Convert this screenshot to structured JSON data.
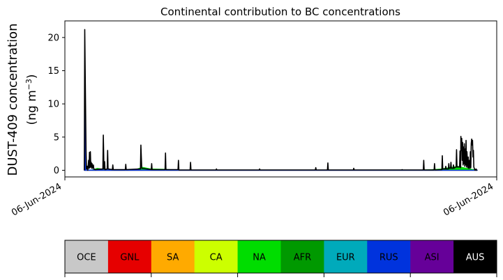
{
  "chart_data": {
    "type": "area",
    "title": "Continental contribution to BC concentrations",
    "ylabel_line1": "DUST-409 concentration",
    "ylabel_line2": "(ng m",
    "ylabel_sup": "−3",
    "ylabel_close": ")",
    "xlabel": "",
    "ylim": [
      -1,
      22.5
    ],
    "yticks": [
      0,
      5,
      10,
      15,
      20
    ],
    "x_tick_labels": [
      "06-Jun-2024",
      "06-Jun-2024"
    ],
    "x_range": [
      0,
      1
    ],
    "data_span": [
      0.045,
      0.955
    ],
    "grid": false,
    "total_series": {
      "name": "",
      "color": "#000000",
      "points": [
        [
          0.045,
          0
        ],
        [
          0.046,
          21.2
        ],
        [
          0.0475,
          12
        ],
        [
          0.049,
          3
        ],
        [
          0.05,
          0.2
        ],
        [
          0.052,
          0.6
        ],
        [
          0.053,
          0
        ],
        [
          0.055,
          1.5
        ],
        [
          0.056,
          0.3
        ],
        [
          0.057,
          2.7
        ],
        [
          0.058,
          0.4
        ],
        [
          0.059,
          2.8
        ],
        [
          0.06,
          0.5
        ],
        [
          0.061,
          1.2
        ],
        [
          0.062,
          0.3
        ],
        [
          0.063,
          1.0
        ],
        [
          0.064,
          0.3
        ],
        [
          0.066,
          0.8
        ],
        [
          0.067,
          0.2
        ],
        [
          0.07,
          0.1
        ],
        [
          0.088,
          0.2
        ],
        [
          0.089,
          5.3
        ],
        [
          0.0905,
          0.2
        ],
        [
          0.092,
          1.3
        ],
        [
          0.093,
          0.1
        ],
        [
          0.098,
          0.2
        ],
        [
          0.099,
          3.0
        ],
        [
          0.1,
          0.2
        ],
        [
          0.11,
          0.1
        ],
        [
          0.111,
          0.8
        ],
        [
          0.112,
          0.1
        ],
        [
          0.14,
          0.1
        ],
        [
          0.141,
          0.9
        ],
        [
          0.142,
          0.1
        ],
        [
          0.175,
          0.2
        ],
        [
          0.176,
          3.8
        ],
        [
          0.177,
          2.0
        ],
        [
          0.178,
          0.3
        ],
        [
          0.2,
          0.1
        ],
        [
          0.201,
          1.0
        ],
        [
          0.202,
          0.1
        ],
        [
          0.232,
          0.1
        ],
        [
          0.233,
          2.6
        ],
        [
          0.234,
          0.1
        ],
        [
          0.262,
          0.1
        ],
        [
          0.263,
          1.5
        ],
        [
          0.264,
          0.05
        ],
        [
          0.29,
          0.05
        ],
        [
          0.291,
          1.2
        ],
        [
          0.292,
          0.05
        ],
        [
          0.35,
          0.05
        ],
        [
          0.351,
          0.2
        ],
        [
          0.352,
          0.05
        ],
        [
          0.45,
          0.05
        ],
        [
          0.451,
          0.2
        ],
        [
          0.452,
          0.05
        ],
        [
          0.58,
          0.05
        ],
        [
          0.581,
          0.4
        ],
        [
          0.582,
          0.05
        ],
        [
          0.608,
          0.05
        ],
        [
          0.609,
          1.1
        ],
        [
          0.61,
          0.05
        ],
        [
          0.668,
          0.05
        ],
        [
          0.669,
          0.3
        ],
        [
          0.67,
          0.05
        ],
        [
          0.78,
          0.05
        ],
        [
          0.781,
          0.1
        ],
        [
          0.782,
          0.05
        ],
        [
          0.83,
          0.05
        ],
        [
          0.831,
          1.5
        ],
        [
          0.832,
          0.05
        ],
        [
          0.855,
          0.05
        ],
        [
          0.856,
          1.0
        ],
        [
          0.857,
          0.05
        ],
        [
          0.873,
          0.1
        ],
        [
          0.874,
          2.2
        ],
        [
          0.875,
          0.2
        ],
        [
          0.881,
          0.2
        ],
        [
          0.882,
          0.6
        ],
        [
          0.883,
          0.2
        ],
        [
          0.888,
          0.2
        ],
        [
          0.889,
          1.0
        ],
        [
          0.89,
          0.3
        ],
        [
          0.893,
          0.3
        ],
        [
          0.894,
          1.2
        ],
        [
          0.895,
          0.3
        ],
        [
          0.899,
          0.3
        ],
        [
          0.9,
          0.8
        ],
        [
          0.901,
          0.3
        ],
        [
          0.906,
          0.5
        ],
        [
          0.907,
          3.1
        ],
        [
          0.908,
          0.5
        ],
        [
          0.914,
          0.5
        ],
        [
          0.915,
          2.9
        ],
        [
          0.916,
          0.4
        ],
        [
          0.9165,
          0.5
        ],
        [
          0.917,
          5.1
        ],
        [
          0.918,
          3.0
        ],
        [
          0.919,
          4.8
        ],
        [
          0.92,
          1.5
        ],
        [
          0.921,
          4.2
        ],
        [
          0.922,
          0.8
        ],
        [
          0.923,
          3.5
        ],
        [
          0.924,
          1.0
        ],
        [
          0.925,
          4.0
        ],
        [
          0.926,
          0.6
        ],
        [
          0.927,
          3.2
        ],
        [
          0.928,
          0.8
        ],
        [
          0.929,
          4.5
        ],
        [
          0.93,
          0.5
        ],
        [
          0.931,
          2.8
        ],
        [
          0.933,
          0.4
        ],
        [
          0.934,
          2.0
        ],
        [
          0.935,
          0.3
        ],
        [
          0.937,
          1.5
        ],
        [
          0.938,
          0.3
        ],
        [
          0.939,
          2.8
        ],
        [
          0.94,
          0.4
        ],
        [
          0.941,
          4.0
        ],
        [
          0.942,
          4.7
        ],
        [
          0.943,
          3.8
        ],
        [
          0.944,
          4.5
        ],
        [
          0.945,
          2.0
        ],
        [
          0.946,
          3.0
        ],
        [
          0.947,
          0.5
        ],
        [
          0.949,
          0.1
        ],
        [
          0.95,
          0.0
        ],
        [
          0.952,
          0.2
        ],
        [
          0.954,
          0.0
        ],
        [
          0.955,
          0.0
        ]
      ]
    },
    "contributions": [
      {
        "name": "GNL",
        "color": "#e60000",
        "points": [
          [
            0.045,
            0
          ],
          [
            0.046,
            9.2
          ],
          [
            0.047,
            2
          ],
          [
            0.048,
            0
          ],
          [
            0.955,
            0
          ]
        ]
      },
      {
        "name": "NA",
        "color": "#00dd00",
        "points": [
          [
            0.06,
            0
          ],
          [
            0.075,
            0.3
          ],
          [
            0.09,
            0.15
          ],
          [
            0.11,
            0.05
          ],
          [
            0.13,
            0
          ],
          [
            0.16,
            0.05
          ],
          [
            0.18,
            0.45
          ],
          [
            0.2,
            0.2
          ],
          [
            0.23,
            0.15
          ],
          [
            0.26,
            0.05
          ],
          [
            0.3,
            0.02
          ],
          [
            0.5,
            0.0
          ],
          [
            0.8,
            0.0
          ],
          [
            0.85,
            0.1
          ],
          [
            0.87,
            0.2
          ],
          [
            0.89,
            0.4
          ],
          [
            0.91,
            0.6
          ],
          [
            0.93,
            0.3
          ],
          [
            0.955,
            0
          ]
        ]
      },
      {
        "name": "RUS",
        "color": "#0033dd",
        "points": [
          [
            0.045,
            0
          ],
          [
            0.046,
            13
          ],
          [
            0.047,
            3
          ],
          [
            0.05,
            0.05
          ],
          [
            0.955,
            0.02
          ]
        ]
      }
    ],
    "colorbar": {
      "labels": [
        "OCE",
        "GNL",
        "SA",
        "CA",
        "NA",
        "AFR",
        "EUR",
        "RUS",
        "ASI",
        "AUS"
      ],
      "colors": [
        "#c8c8c8",
        "#e60000",
        "#ffaa00",
        "#ccff00",
        "#00dd00",
        "#009900",
        "#00aabb",
        "#0033dd",
        "#660099",
        "#000000"
      ],
      "label_colors": [
        "#000000",
        "#000000",
        "#000000",
        "#000000",
        "#000000",
        "#000000",
        "#000000",
        "#000000",
        "#000000",
        "#ffffff"
      ]
    }
  }
}
